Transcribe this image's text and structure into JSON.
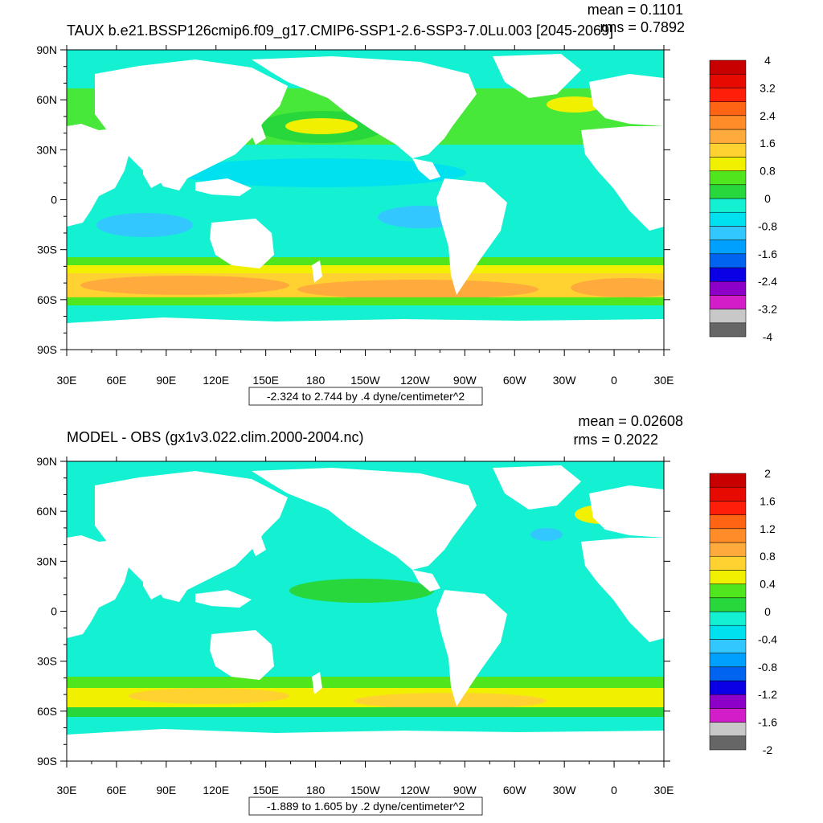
{
  "colors": {
    "palette": [
      "#666666",
      "#c8c8c8",
      "#d21ec8",
      "#8c00c8",
      "#0a00e6",
      "#0064f0",
      "#00a0ff",
      "#32c8ff",
      "#00e1f0",
      "#14f0d2",
      "#28d73c",
      "#50e61e",
      "#f0f000",
      "#ffd232",
      "#ffaa3c",
      "#ff8c28",
      "#ff6414",
      "#ff1e0a",
      "#e60a00",
      "#c80000"
    ],
    "land": "#ffffff"
  },
  "panels": [
    {
      "title": "TAUX b.e21.BSSP126cmip6.f09_g17.CMIP6-SSP1-2.6-SSP3-7.0Lu.003 [2045-2069]",
      "mean_text": "mean = 0.1101",
      "rms_text": "rms = 0.7892",
      "range_text": "-2.324 to 2.744 by .4 dyne/centimeter^2",
      "colorbar_labels": [
        "4",
        "3.2",
        "2.4",
        "1.6",
        "0.8",
        "0",
        "-0.8",
        "-1.6",
        "-2.4",
        "-3.2",
        "-4"
      ]
    },
    {
      "title": "MODEL - OBS (gx1v3.022.clim.2000-2004.nc)",
      "mean_text": "mean = 0.02608",
      "rms_text": "rms = 0.2022",
      "range_text": "-1.889 to 1.605 by .2 dyne/centimeter^2",
      "colorbar_labels": [
        "2",
        "1.6",
        "1.2",
        "0.8",
        "0.4",
        "0",
        "-0.4",
        "-0.8",
        "-1.2",
        "-1.6",
        "-2"
      ]
    }
  ],
  "axes": {
    "x_ticks": [
      "30E",
      "60E",
      "90E",
      "120E",
      "150E",
      "180",
      "150W",
      "120W",
      "90W",
      "60W",
      "30W",
      "0",
      "30E"
    ],
    "y_ticks": [
      "90N",
      "60N",
      "30N",
      "0",
      "30S",
      "60S",
      "90S"
    ]
  }
}
